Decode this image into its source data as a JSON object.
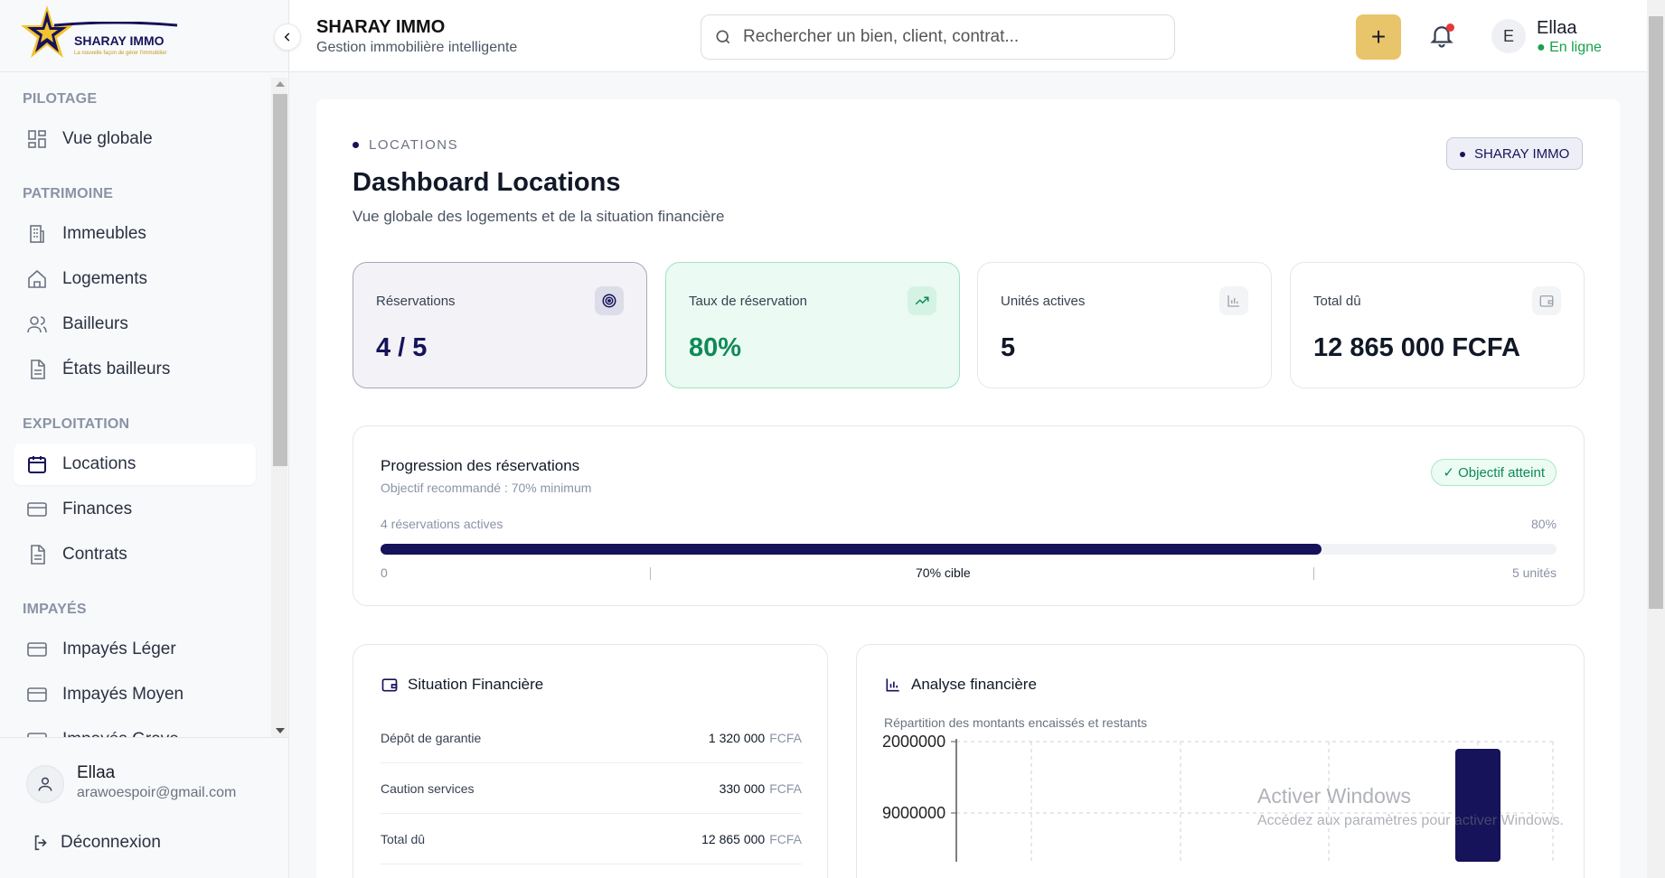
{
  "brand": {
    "logo_text": "SHARAY IMMO",
    "logo_tagline": "La nouvelle façon de gérer l'immobilier",
    "accent": "#16135a",
    "gold": "#e8c46a"
  },
  "header": {
    "title": "SHARAY IMMO",
    "subtitle": "Gestion immobilière intelligente",
    "search_placeholder": "Rechercher un bien, client, contrat...",
    "add_label": "+",
    "user_initial": "E",
    "user_name": "Ellaa",
    "user_status": "● En ligne"
  },
  "sidebar": {
    "sections": [
      {
        "label": "PILOTAGE",
        "items": [
          {
            "label": "Vue globale",
            "icon": "grid-icon"
          }
        ]
      },
      {
        "label": "PATRIMOINE",
        "items": [
          {
            "label": "Immeubles",
            "icon": "building-icon"
          },
          {
            "label": "Logements",
            "icon": "home-icon"
          },
          {
            "label": "Bailleurs",
            "icon": "users-icon"
          },
          {
            "label": "États bailleurs",
            "icon": "document-icon"
          }
        ]
      },
      {
        "label": "EXPLOITATION",
        "items": [
          {
            "label": "Locations",
            "icon": "calendar-icon",
            "active": true
          },
          {
            "label": "Finances",
            "icon": "card-icon"
          },
          {
            "label": "Contrats",
            "icon": "document-icon"
          }
        ]
      },
      {
        "label": "IMPAYÉS",
        "items": [
          {
            "label": "Impayés Léger",
            "icon": "card-icon"
          },
          {
            "label": "Impayés Moyen",
            "icon": "card-icon"
          },
          {
            "label": "Impayés Grave",
            "icon": "card-icon"
          }
        ]
      }
    ],
    "footer": {
      "user_name": "Ellaa",
      "user_email": "arawoespoir@gmail.com",
      "logout_label": "Déconnexion"
    }
  },
  "main": {
    "eyebrow": "LOCATIONS",
    "title": "Dashboard Locations",
    "subtitle": "Vue globale des logements et de la situation financière",
    "badge": "SHARAY IMMO",
    "kpis": [
      {
        "label": "Réservations",
        "value": "4 / 5",
        "icon": "target-icon"
      },
      {
        "label": "Taux de réservation",
        "value": "80%",
        "icon": "trending-up-icon"
      },
      {
        "label": "Unités actives",
        "value": "5",
        "icon": "bar-chart-icon"
      },
      {
        "label": "Total dû",
        "value": "12 865 000 FCFA",
        "icon": "wallet-icon"
      }
    ],
    "progress": {
      "title": "Progression des réservations",
      "subtitle": "Objectif recommandé : 70% minimum",
      "badge": "✓ Objectif atteint",
      "left_label": "4 réservations actives",
      "right_label": "80%",
      "percent": 80,
      "scale_start": "0",
      "target_label": "70% cible",
      "scale_end": "5 unités"
    },
    "finance": {
      "title": "Situation Financière",
      "rows": [
        {
          "label": "Dépôt de garantie",
          "amount": "1 320 000",
          "currency": "FCFA"
        },
        {
          "label": "Caution services",
          "amount": "330 000",
          "currency": "FCFA"
        },
        {
          "label": "Total dû",
          "amount": "12 865 000",
          "currency": "FCFA"
        }
      ]
    },
    "analysis": {
      "title": "Analyse financière",
      "subtitle": "Répartition des montants encaissés et restants"
    }
  },
  "chart_data": {
    "type": "bar",
    "title": "",
    "y_tick_labels": [
      "2000000",
      "9000000"
    ],
    "values_visible": "partial",
    "grid": true
  },
  "watermark": {
    "line1": "Activer Windows",
    "line2": "Accédez aux paramètres pour activer Windows."
  }
}
